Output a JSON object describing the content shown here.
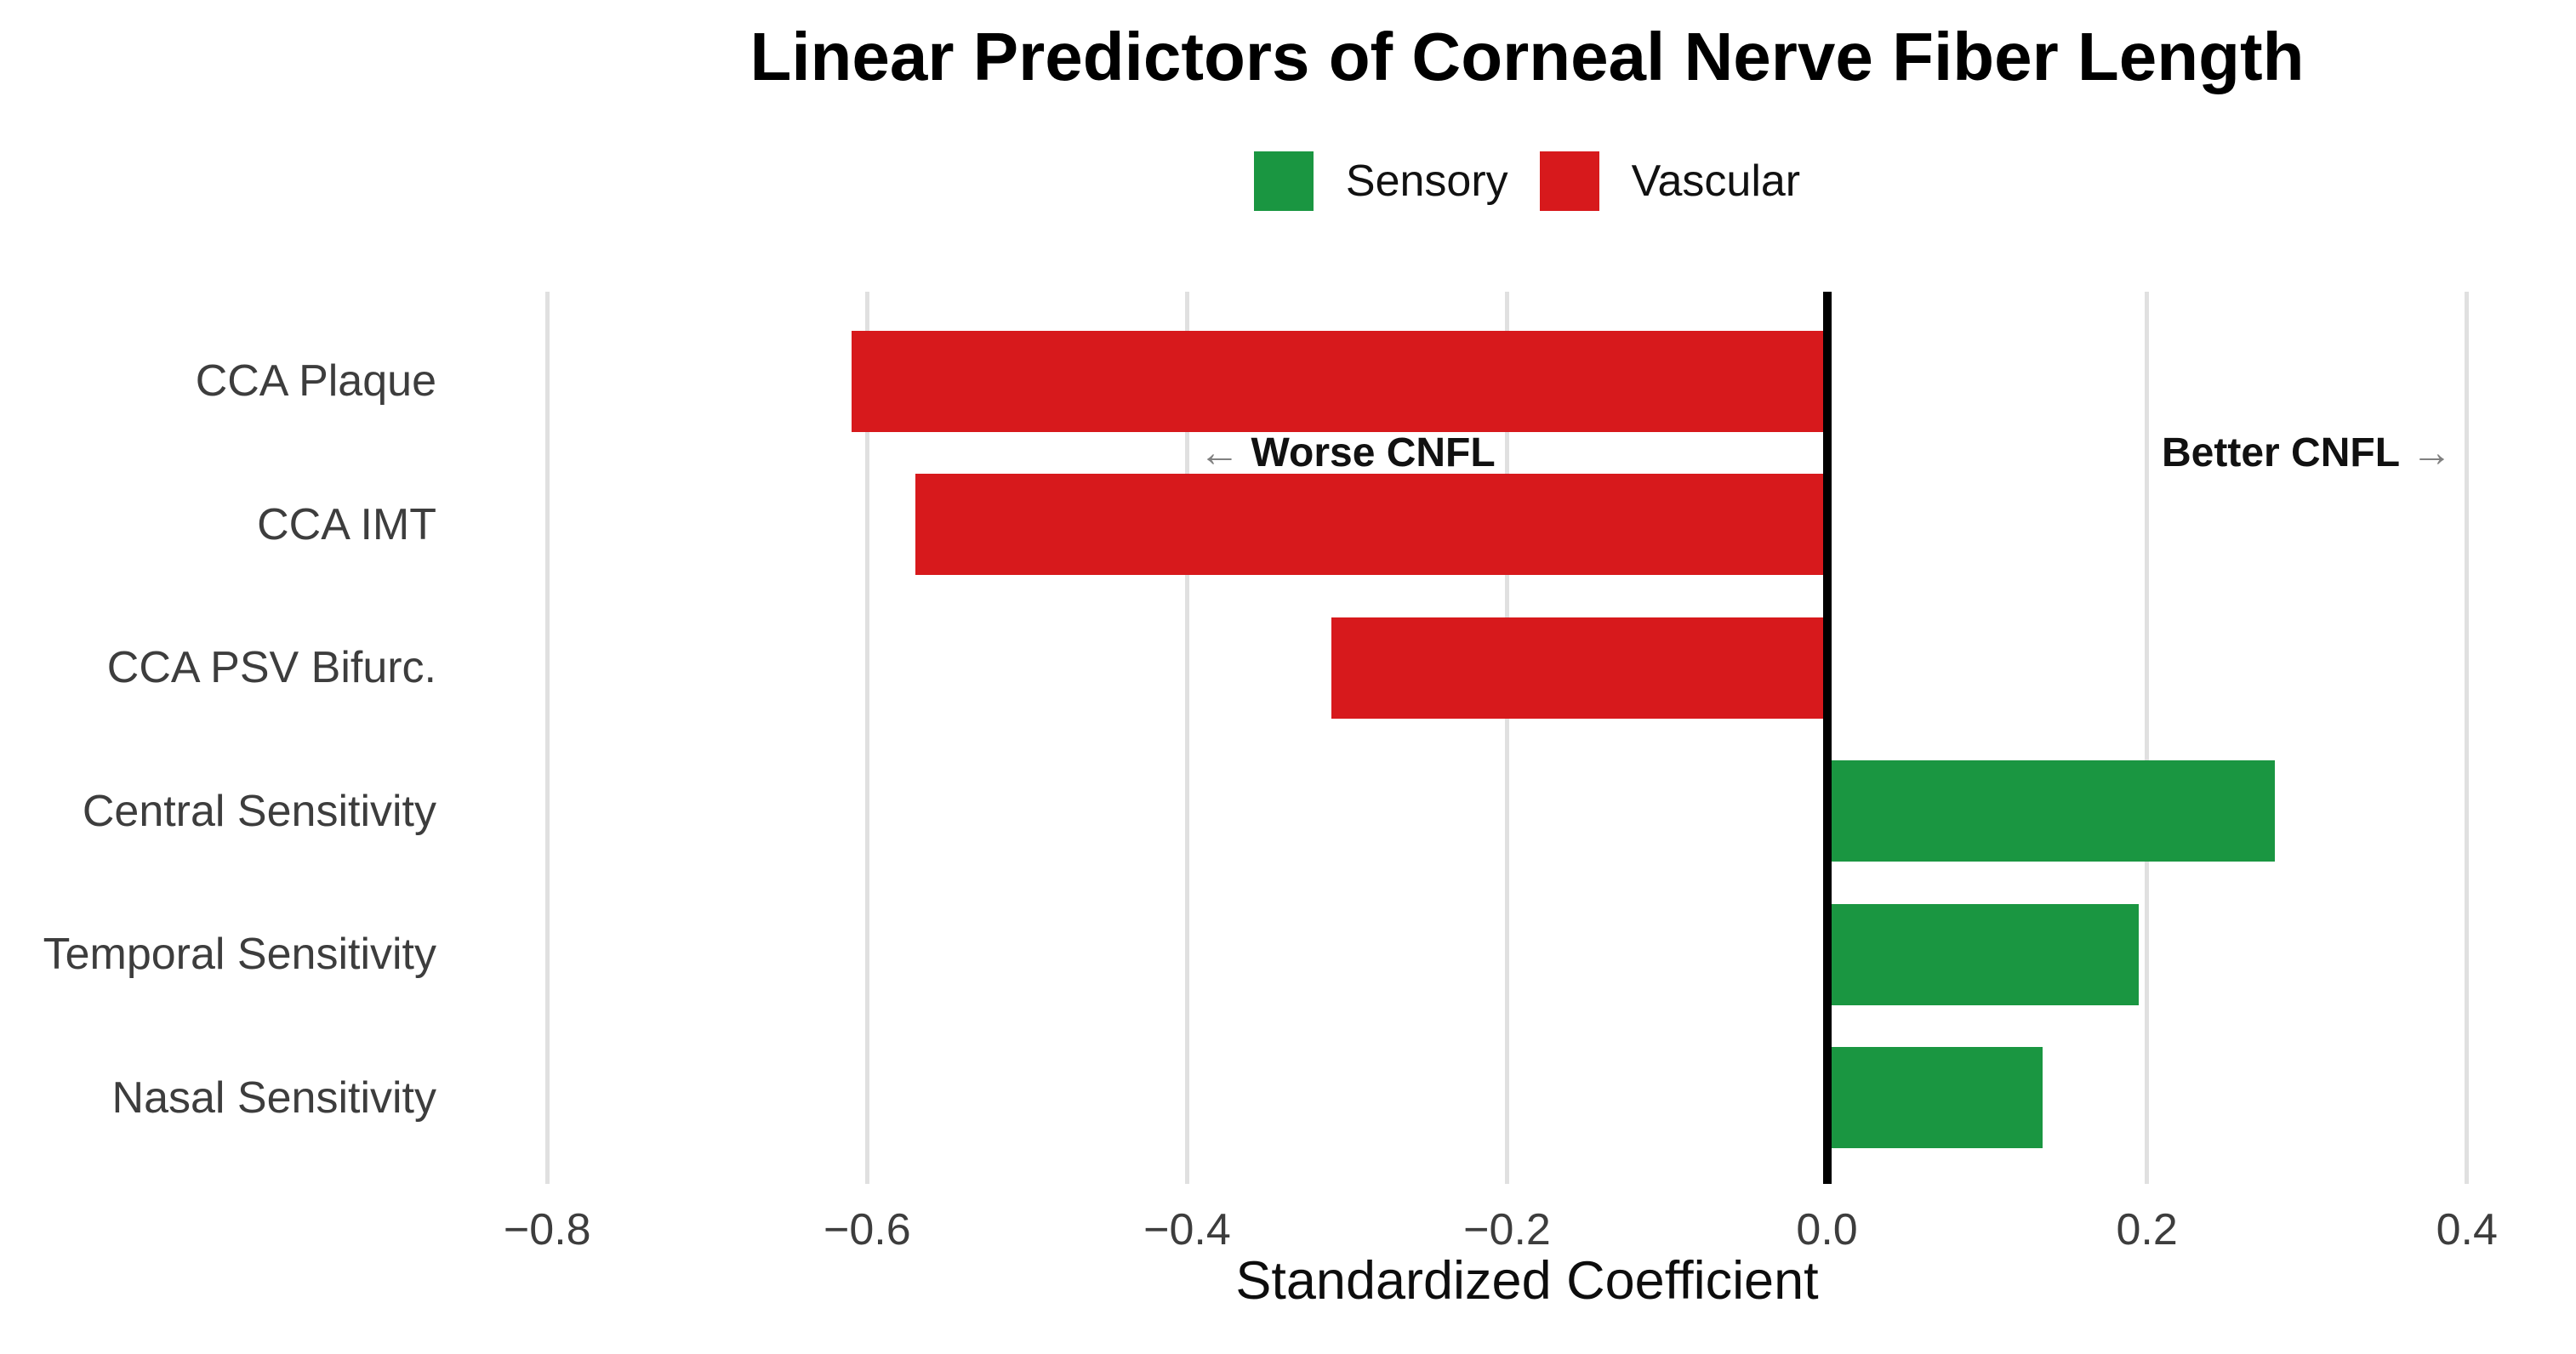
{
  "title": "Linear Predictors of Corneal Nerve Fiber Length",
  "legend": [
    {
      "label": "Sensory",
      "color": "#1a9641"
    },
    {
      "label": "Vascular",
      "color": "#d7191c"
    }
  ],
  "colors": {
    "sensory_green": "#1a9641",
    "vascular_red": "#d7191c",
    "gridline": "#e0e0e0",
    "zero_line": "#000000",
    "axis_text": "#3d3d3d"
  },
  "chart_data": {
    "type": "bar",
    "orientation": "horizontal",
    "title": "Linear Predictors of Corneal Nerve Fiber Length",
    "xlabel": "Standardized Coefficient",
    "ylabel": "",
    "categories": [
      "CCA Plaque",
      "CCA IMT",
      "CCA PSV Bifurc.",
      "Central Sensitivity",
      "Temporal Sensitivity",
      "Nasal Sensitivity"
    ],
    "values": [
      -0.61,
      -0.57,
      -0.31,
      0.28,
      0.195,
      0.135
    ],
    "groups": [
      "Vascular",
      "Vascular",
      "Vascular",
      "Sensory",
      "Sensory",
      "Sensory"
    ],
    "group_colors": {
      "Sensory": "#1a9641",
      "Vascular": "#d7191c"
    },
    "xlim": [
      -0.823,
      0.448
    ],
    "xticks": [
      -0.8,
      -0.6,
      -0.4,
      -0.2,
      0.0,
      0.2,
      0.4
    ],
    "xtick_labels": [
      "−0.8",
      "−0.6",
      "−0.4",
      "−0.2",
      "0.0",
      "0.2",
      "0.4"
    ],
    "grid": "vertical-only",
    "legend_position": "top-center",
    "zero_line": true,
    "annotations": [
      {
        "arrow": "←",
        "label": "Worse CNFL",
        "side": "left",
        "x": -0.3,
        "y_band": 1.0
      },
      {
        "arrow": "→",
        "label": "Better CNFL",
        "side": "right",
        "x": 0.3,
        "y_band": 1.0
      }
    ]
  }
}
